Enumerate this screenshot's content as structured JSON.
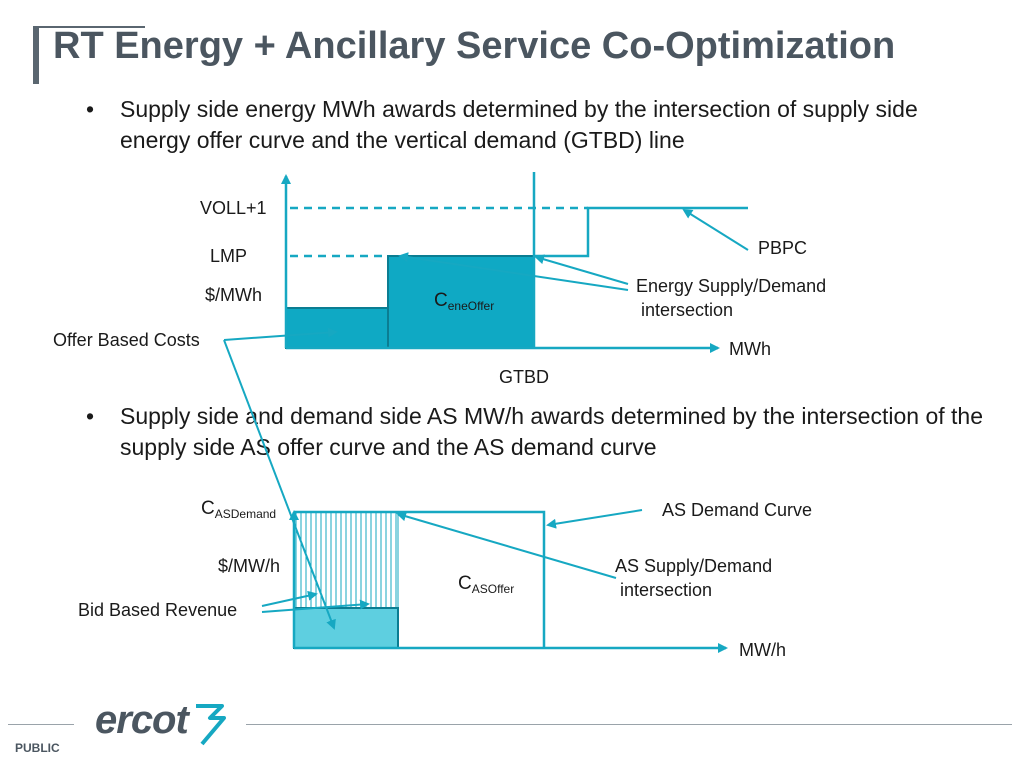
{
  "slide": {
    "title": "RT Energy + Ancillary Service Co-Optimization",
    "bullets": [
      {
        "marker": "•",
        "text": "Supply side energy MWh awards determined by the intersection of supply side energy offer curve and the vertical demand (GTBD) line"
      },
      {
        "marker": "•",
        "text": "Supply side and demand side AS MW/h awards determined by the intersection of the supply side AS offer curve and the AS demand curve"
      }
    ]
  },
  "energy_diagram": {
    "voll": "VOLL+1",
    "lmp": "LMP",
    "y_unit": "$/MWh",
    "offer_based_costs": "Offer Based Costs",
    "cost_main": "C",
    "cost_sub": "eneOffer",
    "pbpc": "PBPC",
    "intersection_line1": "Energy Supply/Demand",
    "intersection_line2": "intersection",
    "x_unit": "MWh",
    "gtbd": "GTBD"
  },
  "as_diagram": {
    "demand_main": "C",
    "demand_sub": "ASDemand",
    "y_unit": "$/MW/h",
    "bid_based_revenue": "Bid Based Revenue",
    "offer_main": "C",
    "offer_sub": "ASOffer",
    "demand_curve": "AS Demand Curve",
    "intersection_line1": "AS Supply/Demand",
    "intersection_line2": "intersection",
    "x_unit": "MW/h"
  },
  "footer": {
    "logo": "ercot",
    "classification": "PUBLIC"
  },
  "colors": {
    "accent": "#16a8c2",
    "fill_dark": "#0fa9c4",
    "fill_light": "#5ecfe0",
    "title": "#4b5660"
  }
}
